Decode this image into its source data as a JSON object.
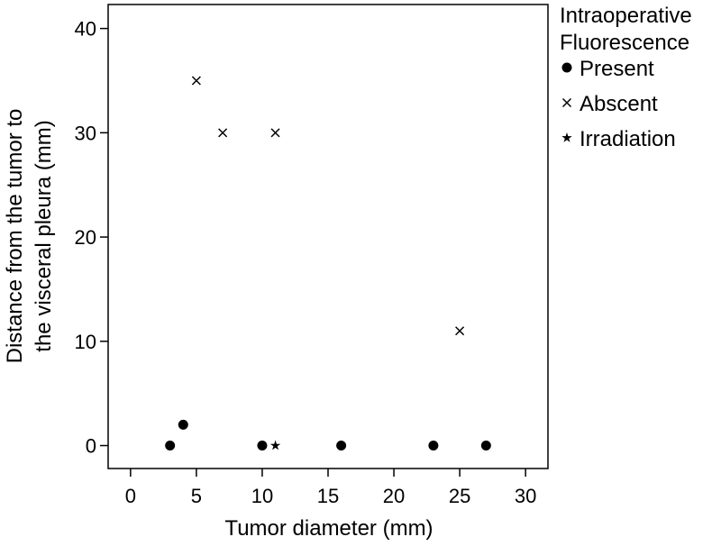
{
  "chart_data": {
    "type": "scatter",
    "title": "",
    "xlabel": "Tumor diameter (mm)",
    "ylabel_lines": [
      "Distance from the tumor to",
      "the visceral pleura (mm)"
    ],
    "xlim": [
      -1.7,
      31.7
    ],
    "ylim": [
      -2.2,
      42.3
    ],
    "x_ticks": [
      0,
      5,
      10,
      15,
      20,
      25,
      30
    ],
    "y_ticks": [
      0,
      10,
      20,
      30,
      40
    ],
    "grid": false,
    "legend": {
      "title_lines": [
        "Intraoperative",
        "Fluorescence"
      ],
      "placement": "right"
    },
    "series": [
      {
        "name": "Present",
        "marker": "circle",
        "color": "#000000",
        "points": [
          {
            "x": 3,
            "y": 0
          },
          {
            "x": 4,
            "y": 2
          },
          {
            "x": 10,
            "y": 0
          },
          {
            "x": 16,
            "y": 0
          },
          {
            "x": 23,
            "y": 0
          },
          {
            "x": 27,
            "y": 0
          }
        ]
      },
      {
        "name": "Abscent",
        "marker": "x",
        "color": "#000000",
        "points": [
          {
            "x": 5,
            "y": 35
          },
          {
            "x": 7,
            "y": 30
          },
          {
            "x": 11,
            "y": 30
          },
          {
            "x": 25,
            "y": 11
          }
        ]
      },
      {
        "name": "Irradiation",
        "marker": "star",
        "color": "#000000",
        "points": [
          {
            "x": 11,
            "y": 0
          }
        ]
      }
    ]
  }
}
